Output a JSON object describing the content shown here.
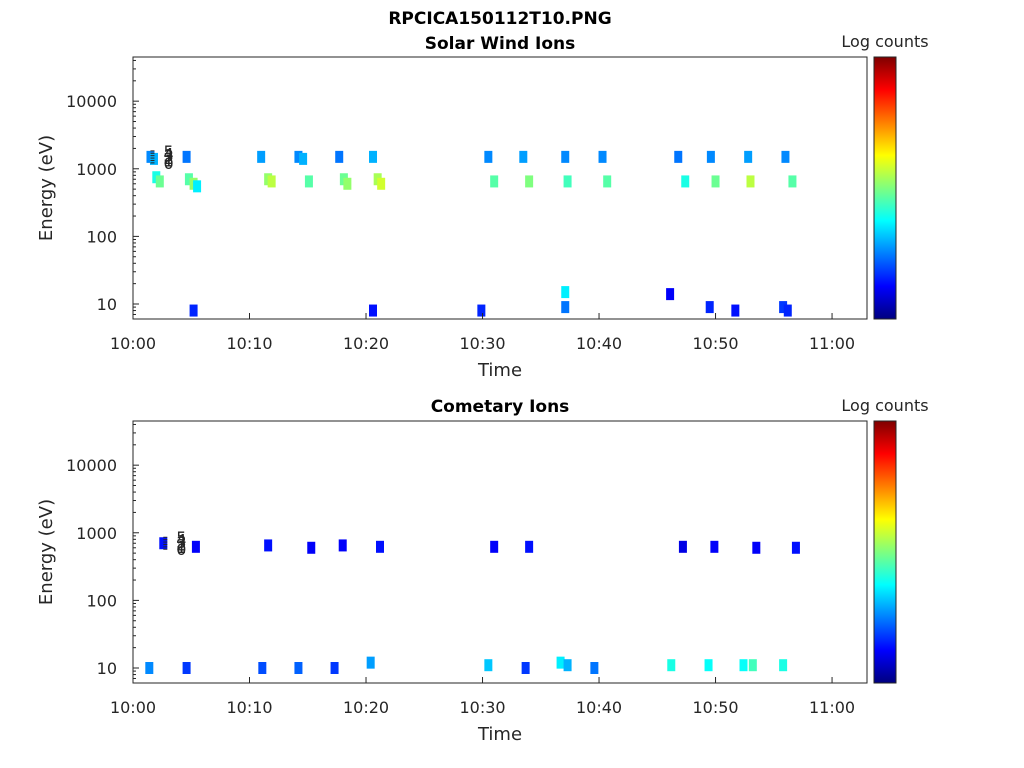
{
  "figure": {
    "title": "RPCICA150112T10.PNG"
  },
  "colormap": {
    "stops": [
      "#00007f",
      "#0000ff",
      "#007fff",
      "#00ffff",
      "#7fff7f",
      "#ffff00",
      "#ff7f00",
      "#ff0000",
      "#7f0000"
    ]
  },
  "chart_data": [
    {
      "type": "heatmap",
      "title": "Solar Wind Ions",
      "xlabel": "Time",
      "ylabel": "Energy (eV)",
      "yscale": "log",
      "ylim": [
        6,
        45000
      ],
      "xlim": [
        "10:00",
        "11:03"
      ],
      "xticks": [
        "10:00",
        "10:10",
        "10:20",
        "10:30",
        "10:40",
        "10:50",
        "11:00"
      ],
      "yticks": [
        "10",
        "100",
        "1000",
        "10000"
      ],
      "colorbar": {
        "label": "Log counts",
        "ticks": [
          "0",
          "1",
          "2",
          "3",
          "4",
          "5"
        ],
        "range": [
          0,
          5
        ]
      },
      "cells": [
        {
          "t": "10:01.5",
          "e": 1500,
          "v": 1.3
        },
        {
          "t": "10:01.8",
          "e": 1400,
          "v": 1.5
        },
        {
          "t": "10:02.0",
          "e": 750,
          "v": 2.0
        },
        {
          "t": "10:02.3",
          "e": 650,
          "v": 2.4
        },
        {
          "t": "10:04.6",
          "e": 1500,
          "v": 1.2
        },
        {
          "t": "10:04.8",
          "e": 700,
          "v": 2.3
        },
        {
          "t": "10:05.2",
          "e": 600,
          "v": 2.6
        },
        {
          "t": "10:05.5",
          "e": 550,
          "v": 1.8
        },
        {
          "t": "10:11.0",
          "e": 1500,
          "v": 1.4
        },
        {
          "t": "10:11.6",
          "e": 700,
          "v": 2.6
        },
        {
          "t": "10:11.9",
          "e": 650,
          "v": 2.8
        },
        {
          "t": "10:14.2",
          "e": 1500,
          "v": 1.3
        },
        {
          "t": "10:14.6",
          "e": 1400,
          "v": 1.5
        },
        {
          "t": "10:15.1",
          "e": 650,
          "v": 2.3
        },
        {
          "t": "10:17.7",
          "e": 1500,
          "v": 1.2
        },
        {
          "t": "10:18.1",
          "e": 700,
          "v": 2.4
        },
        {
          "t": "10:18.4",
          "e": 600,
          "v": 2.6
        },
        {
          "t": "10:20.6",
          "e": 1500,
          "v": 1.5
        },
        {
          "t": "10:21.0",
          "e": 700,
          "v": 2.7
        },
        {
          "t": "10:21.3",
          "e": 600,
          "v": 2.9
        },
        {
          "t": "10:30.5",
          "e": 1500,
          "v": 1.3
        },
        {
          "t": "10:31.0",
          "e": 650,
          "v": 2.3
        },
        {
          "t": "10:33.5",
          "e": 1500,
          "v": 1.4
        },
        {
          "t": "10:34.0",
          "e": 650,
          "v": 2.5
        },
        {
          "t": "10:37.1",
          "e": 1500,
          "v": 1.3
        },
        {
          "t": "10:37.3",
          "e": 650,
          "v": 2.2
        },
        {
          "t": "10:40.3",
          "e": 1500,
          "v": 1.3
        },
        {
          "t": "10:40.7",
          "e": 650,
          "v": 2.3
        },
        {
          "t": "10:46.8",
          "e": 1500,
          "v": 1.2
        },
        {
          "t": "10:47.4",
          "e": 650,
          "v": 2.0
        },
        {
          "t": "10:49.6",
          "e": 1500,
          "v": 1.3
        },
        {
          "t": "10:50.0",
          "e": 650,
          "v": 2.4
        },
        {
          "t": "10:52.8",
          "e": 1500,
          "v": 1.4
        },
        {
          "t": "10:53.0",
          "e": 650,
          "v": 2.8
        },
        {
          "t": "10:56.0",
          "e": 1500,
          "v": 1.3
        },
        {
          "t": "10:56.6",
          "e": 650,
          "v": 2.3
        },
        {
          "t": "10:37.1",
          "e": 15,
          "v": 1.8
        },
        {
          "t": "10:37.1",
          "e": 9,
          "v": 1.2
        },
        {
          "t": "10:05.2",
          "e": 8,
          "v": 0.8
        },
        {
          "t": "10:20.6",
          "e": 8,
          "v": 0.7
        },
        {
          "t": "10:29.9",
          "e": 8,
          "v": 0.8
        },
        {
          "t": "10:46.1",
          "e": 14,
          "v": 0.6
        },
        {
          "t": "10:49.5",
          "e": 9,
          "v": 0.8
        },
        {
          "t": "10:51.7",
          "e": 8,
          "v": 0.7
        },
        {
          "t": "10:55.8",
          "e": 9,
          "v": 0.9
        },
        {
          "t": "10:56.2",
          "e": 8,
          "v": 0.8
        }
      ]
    },
    {
      "type": "heatmap",
      "title": "Cometary Ions",
      "xlabel": "Time",
      "ylabel": "Energy (eV)",
      "yscale": "log",
      "ylim": [
        6,
        45000
      ],
      "xlim": [
        "10:00",
        "11:03"
      ],
      "xticks": [
        "10:00",
        "10:10",
        "10:20",
        "10:30",
        "10:40",
        "10:50",
        "11:00"
      ],
      "yticks": [
        "10",
        "100",
        "1000",
        "10000"
      ],
      "colorbar": {
        "label": "Log counts",
        "ticks": [
          "0",
          "1",
          "2",
          "3",
          "4",
          "5"
        ],
        "range": [
          0,
          5
        ]
      },
      "cells": [
        {
          "t": "10:02.6",
          "e": 700,
          "v": 0.7
        },
        {
          "t": "10:05.4",
          "e": 620,
          "v": 0.6
        },
        {
          "t": "10:11.6",
          "e": 650,
          "v": 0.7
        },
        {
          "t": "10:15.3",
          "e": 600,
          "v": 0.6
        },
        {
          "t": "10:18.0",
          "e": 650,
          "v": 0.6
        },
        {
          "t": "10:21.2",
          "e": 620,
          "v": 0.7
        },
        {
          "t": "10:31.0",
          "e": 620,
          "v": 0.6
        },
        {
          "t": "10:34.0",
          "e": 620,
          "v": 0.7
        },
        {
          "t": "10:47.2",
          "e": 620,
          "v": 0.5
        },
        {
          "t": "10:49.9",
          "e": 620,
          "v": 0.6
        },
        {
          "t": "10:53.5",
          "e": 600,
          "v": 0.6
        },
        {
          "t": "10:56.9",
          "e": 600,
          "v": 0.7
        },
        {
          "t": "10:01.4",
          "e": 10,
          "v": 1.3
        },
        {
          "t": "10:04.6",
          "e": 10,
          "v": 0.9
        },
        {
          "t": "10:11.1",
          "e": 10,
          "v": 1.0
        },
        {
          "t": "10:14.2",
          "e": 10,
          "v": 1.1
        },
        {
          "t": "10:17.3",
          "e": 10,
          "v": 0.9
        },
        {
          "t": "10:20.4",
          "e": 12,
          "v": 1.4
        },
        {
          "t": "10:30.5",
          "e": 11,
          "v": 1.6
        },
        {
          "t": "10:33.7",
          "e": 10,
          "v": 0.9
        },
        {
          "t": "10:36.7",
          "e": 12,
          "v": 1.8
        },
        {
          "t": "10:37.3",
          "e": 11,
          "v": 1.5
        },
        {
          "t": "10:39.6",
          "e": 10,
          "v": 1.2
        },
        {
          "t": "10:46.2",
          "e": 11,
          "v": 2.0
        },
        {
          "t": "10:49.4",
          "e": 11,
          "v": 1.9
        },
        {
          "t": "10:52.4",
          "e": 11,
          "v": 1.9
        },
        {
          "t": "10:53.2",
          "e": 11,
          "v": 2.2
        },
        {
          "t": "10:55.8",
          "e": 11,
          "v": 2.0
        }
      ]
    }
  ]
}
